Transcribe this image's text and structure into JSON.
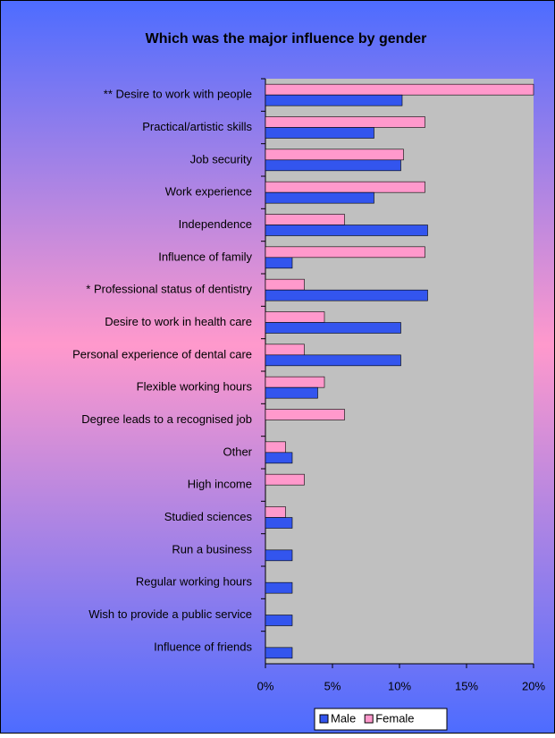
{
  "chart_data": {
    "type": "hbar",
    "title": "Which was the major influence by gender",
    "categories": [
      "** Desire to work with people",
      "Practical/artistic skills",
      "Job security",
      "Work experience",
      "Independence",
      "Influence of  family",
      "* Professional status of dentistry",
      "Desire to work in health care",
      "Personal experience of dental care",
      "Flexible working hours",
      "Degree leads to a recognised job",
      "Other",
      "High income",
      "Studied sciences",
      "Run a business",
      "Regular working hours",
      "Wish to provide a public service",
      "Influence of friends"
    ],
    "series": [
      {
        "name": "Female",
        "color": "#ff99cc",
        "values": [
          20,
          11.9,
          10.3,
          11.9,
          5.9,
          11.9,
          2.9,
          4.4,
          2.9,
          4.4,
          5.9,
          1.5,
          2.9,
          1.5,
          0,
          0,
          0,
          0
        ]
      },
      {
        "name": "Male",
        "color": "#3355ee",
        "values": [
          10.2,
          8.1,
          10.1,
          8.1,
          12.1,
          2.0,
          12.1,
          10.1,
          10.1,
          3.9,
          0,
          2.0,
          0,
          2.0,
          2.0,
          2.0,
          2.0,
          2.0
        ]
      }
    ],
    "xlim": [
      0,
      20
    ],
    "xticks": [
      {
        "value": 0,
        "label": "0%"
      },
      {
        "value": 5,
        "label": "5%"
      },
      {
        "value": 10,
        "label": "10%"
      },
      {
        "value": 15,
        "label": "15%"
      },
      {
        "value": 20,
        "label": "20%"
      }
    ],
    "legend": "bottom",
    "plot_background": "#c0c0c0"
  }
}
